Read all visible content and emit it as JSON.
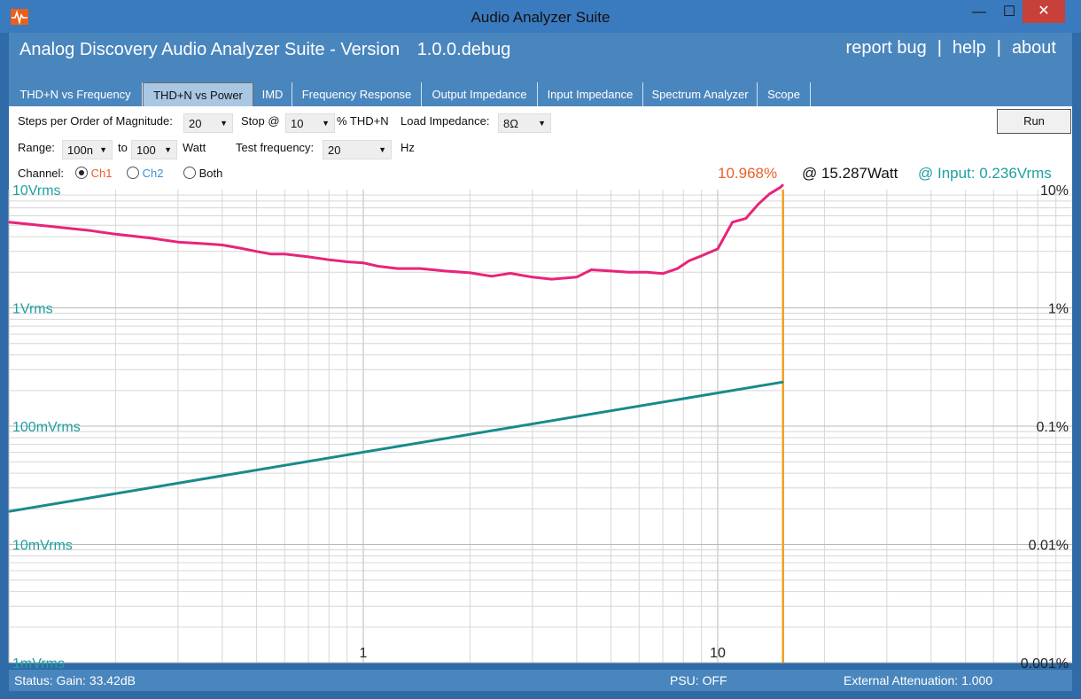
{
  "window": {
    "title": "Audio Analyzer Suite"
  },
  "header": {
    "title": "Analog Discovery Audio Analyzer Suite - Version",
    "version": "1.0.0.debug",
    "links": [
      "report bug",
      "help",
      "about"
    ]
  },
  "tabs": [
    {
      "label": "THD+N vs Frequency",
      "active": false
    },
    {
      "label": "THD+N vs Power",
      "active": true
    },
    {
      "label": "IMD",
      "active": false
    },
    {
      "label": "Frequency Response",
      "active": false
    },
    {
      "label": "Output Impedance",
      "active": false
    },
    {
      "label": "Input Impedance",
      "active": false
    },
    {
      "label": "Spectrum Analyzer",
      "active": false
    },
    {
      "label": "Scope",
      "active": false
    }
  ],
  "controls": {
    "steps_label": "Steps per Order of Magnitude:",
    "steps_value": "20",
    "stop_label": "Stop @",
    "stop_value": "10",
    "stop_unit": "% THD+N",
    "load_label": "Load Impedance:",
    "load_value": "8Ω",
    "range_label": "Range:",
    "range_from": "100n",
    "range_to_label": "to",
    "range_to": "100",
    "range_unit": "Watt",
    "testfreq_label": "Test frequency:",
    "testfreq_value": "20",
    "testfreq_unit": "Hz",
    "channel_label": "Channel:",
    "ch1": "Ch1",
    "ch2": "Ch2",
    "both": "Both",
    "selected_channel": "Ch1",
    "run_label": "Run"
  },
  "readout": {
    "thd": "10.968%",
    "power": "@ 15.287Watt",
    "input": "@ Input: 0.236Vrms"
  },
  "colors": {
    "thd_line": "#e8247a",
    "input_line": "#1a8a8a",
    "cursor": "#f0a020",
    "thd_readout": "#e8602c",
    "input_readout": "#1fa0a0",
    "ch2": "#3f8fd0"
  },
  "chart_data": {
    "type": "line",
    "x_scale": "log",
    "xlim": [
      0.1,
      100
    ],
    "x_tick_labels": [
      "1",
      "10"
    ],
    "left_axis_scale": "log",
    "left_ylim_vrms": [
      0.001,
      10
    ],
    "left_tick_labels": [
      "10Vrms",
      "1Vrms",
      "100mVrms",
      "10mVrms",
      "1mVrms"
    ],
    "right_tick_labels": [
      "10%",
      "1%",
      "0.1%",
      "0.01%",
      "0.001%"
    ],
    "right_ylim_percent": [
      0.001,
      10
    ],
    "grid": true,
    "cursor_x": 15.287,
    "series": [
      {
        "color": "#e8247a",
        "axis": "right",
        "unit": "%",
        "x": [
          0.1,
          0.13,
          0.17,
          0.2,
          0.25,
          0.3,
          0.35,
          0.4,
          0.45,
          0.5,
          0.55,
          0.6,
          0.7,
          0.8,
          0.9,
          1.0,
          1.1,
          1.25,
          1.45,
          1.7,
          2.0,
          2.3,
          2.6,
          3.0,
          3.4,
          4.0,
          4.4,
          5.0,
          5.6,
          6.3,
          7.0,
          7.7,
          8.3,
          9.0,
          10.0,
          11.0,
          12.0,
          13.0,
          14.0,
          15.0,
          15.287
        ],
        "values": [
          5.3,
          4.9,
          4.5,
          4.2,
          3.9,
          3.6,
          3.5,
          3.4,
          3.2,
          3.0,
          2.85,
          2.85,
          2.7,
          2.55,
          2.45,
          2.4,
          2.25,
          2.15,
          2.15,
          2.05,
          1.98,
          1.85,
          1.96,
          1.82,
          1.75,
          1.82,
          2.1,
          2.05,
          2.0,
          2.0,
          1.95,
          2.15,
          2.5,
          2.75,
          3.15,
          5.3,
          5.7,
          7.5,
          9.2,
          10.4,
          10.968
        ]
      },
      {
        "color": "#1a8a8a",
        "axis": "left",
        "unit": "Vrms",
        "x": [
          0.1,
          15.287
        ],
        "values": [
          0.019,
          0.236
        ]
      }
    ]
  },
  "status": {
    "gain": "Status: Gain: 33.42dB",
    "psu": "PSU: OFF",
    "attenuation": "External Attenuation: 1.000"
  }
}
